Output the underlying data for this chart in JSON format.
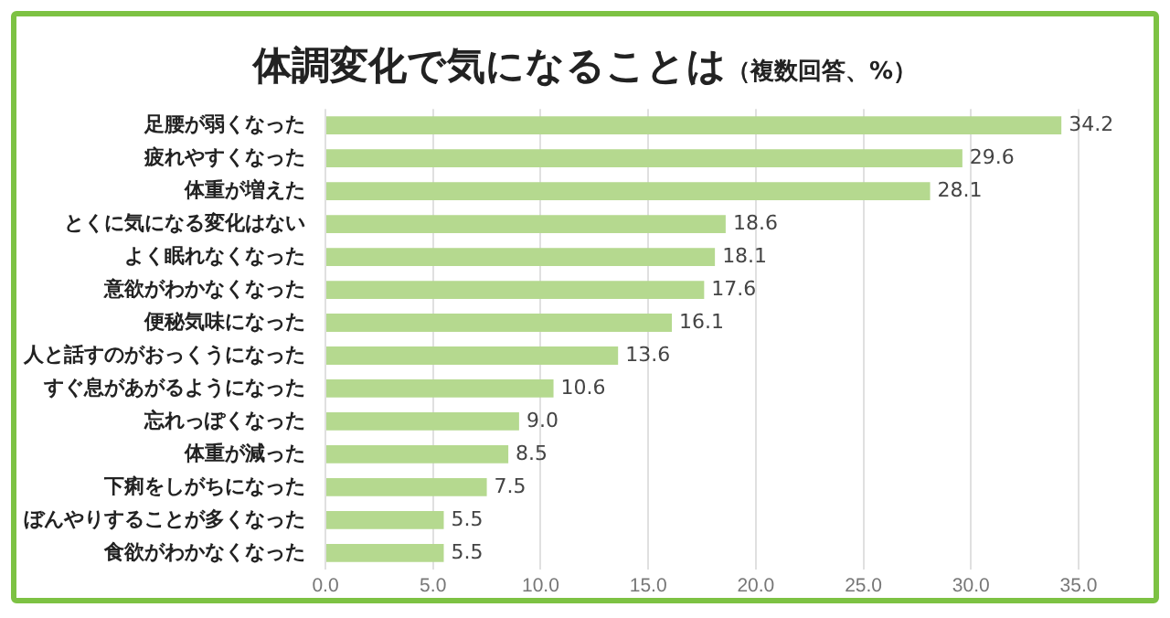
{
  "chart_data": {
    "type": "bar",
    "orientation": "horizontal",
    "title": "体調変化で気になることは",
    "subtitle": "（複数回答、%）",
    "categories": [
      "足腰が弱くなった",
      "疲れやすくなった",
      "体重が増えた",
      "とくに気になる変化はない",
      "よく眠れなくなった",
      "意欲がわかなくなった",
      "便秘気味になった",
      "人と話すのがおっくうになった",
      "すぐ息があがるようになった",
      "忘れっぽくなった",
      "体重が減った",
      "下痢をしがちになった",
      "ぼんやりすることが多くなった",
      "食欲がわかなくなった"
    ],
    "values": [
      34.2,
      29.6,
      28.1,
      18.6,
      18.1,
      17.6,
      16.1,
      13.6,
      10.6,
      9.0,
      8.5,
      7.5,
      5.5,
      5.5
    ],
    "value_labels": [
      "34.2",
      "29.6",
      "28.1",
      "18.6",
      "18.1",
      "17.6",
      "16.1",
      "13.6",
      "10.6",
      "9.0",
      "8.5",
      "7.5",
      "5.5",
      "5.5"
    ],
    "color": "#b5d98f",
    "xlim": [
      0,
      35
    ],
    "xticks": [
      {
        "value": 0,
        "label": "0.0"
      },
      {
        "value": 5,
        "label": "5.0"
      },
      {
        "value": 10,
        "label": "10.0"
      },
      {
        "value": 15,
        "label": "15.0"
      },
      {
        "value": 20,
        "label": "20.0"
      },
      {
        "value": 25,
        "label": "25.0"
      },
      {
        "value": 30,
        "label": "30.0"
      },
      {
        "value": 35,
        "label": "35.0"
      }
    ],
    "grid": "x"
  }
}
